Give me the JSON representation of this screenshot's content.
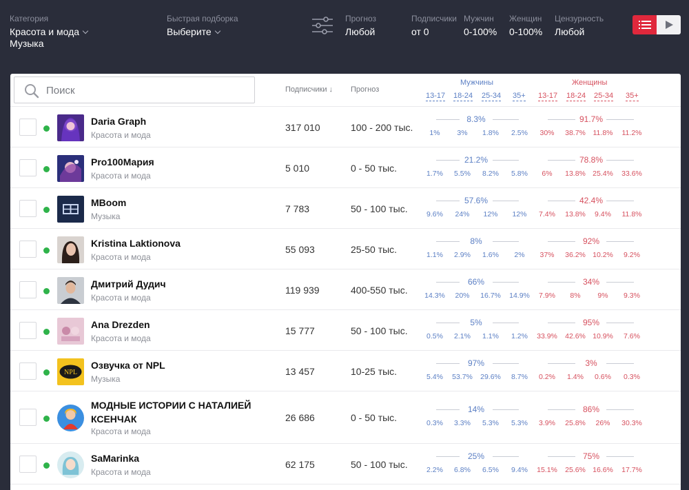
{
  "filters": {
    "category": {
      "label": "Категория",
      "value1": "Красота и мода",
      "value2": "Музыка"
    },
    "quick": {
      "label": "Быстрая подборка",
      "value": "Выберите"
    },
    "forecast": {
      "label": "Прогноз",
      "value": "Любой"
    },
    "subscribers": {
      "label": "Подписчики",
      "value": "от 0"
    },
    "men": {
      "label": "Мужчин",
      "value": "0-100%"
    },
    "women": {
      "label": "Женщин",
      "value": "0-100%"
    },
    "censorship": {
      "label": "Цензурность",
      "value": "Любой"
    }
  },
  "colors": {
    "background": "#2a2d3a",
    "accent": "#e0283c",
    "men": "#5b7fc4",
    "women": "#d6505e",
    "online": "#2fb34a"
  },
  "table": {
    "search_placeholder": "Поиск",
    "col_subscribers": "Подписчики",
    "sort_arrow": "↓",
    "col_forecast": "Прогноз",
    "men_title": "Мужчины",
    "women_title": "Женщины",
    "ages": [
      "13-17",
      "18-24",
      "25-34",
      "35+"
    ],
    "rows": [
      {
        "name": "Daria Graph",
        "category": "Красота и мода",
        "subscribers": "317 010",
        "forecast": "100 - 200 тыс.",
        "men_total": "8.3%",
        "men": [
          "1%",
          "3%",
          "1.8%",
          "2.5%"
        ],
        "women_total": "91.7%",
        "women": [
          "30%",
          "38.7%",
          "11.8%",
          "11.2%"
        ],
        "avatar": "avatar-1"
      },
      {
        "name": "Pro100Мария",
        "category": "Красота и мода",
        "subscribers": "5 010",
        "forecast": "0 - 50 тыс.",
        "men_total": "21.2%",
        "men": [
          "1.7%",
          "5.5%",
          "8.2%",
          "5.8%"
        ],
        "women_total": "78.8%",
        "women": [
          "6%",
          "13.8%",
          "25.4%",
          "33.6%"
        ],
        "avatar": "avatar-2"
      },
      {
        "name": "MBoom",
        "category": "Музыка",
        "subscribers": "7 783",
        "forecast": "50 - 100 тыс.",
        "men_total": "57.6%",
        "men": [
          "9.6%",
          "24%",
          "12%",
          "12%"
        ],
        "women_total": "42.4%",
        "women": [
          "7.4%",
          "13.8%",
          "9.4%",
          "11.8%"
        ],
        "avatar": "avatar-3"
      },
      {
        "name": "Kristina Laktionova",
        "category": "Красота и мода",
        "subscribers": "55 093",
        "forecast": "25-50 тыс.",
        "men_total": "8%",
        "men": [
          "1.1%",
          "2.9%",
          "1.6%",
          "2%"
        ],
        "women_total": "92%",
        "women": [
          "37%",
          "36.2%",
          "10.2%",
          "9.2%"
        ],
        "avatar": "avatar-4"
      },
      {
        "name": "Дмитрий Дудич",
        "category": "Красота и мода",
        "subscribers": "119 939",
        "forecast": "400-550 тыс.",
        "men_total": "66%",
        "men": [
          "14.3%",
          "20%",
          "16.7%",
          "14.9%"
        ],
        "women_total": "34%",
        "women": [
          "7.9%",
          "8%",
          "9%",
          "9.3%"
        ],
        "avatar": "avatar-5"
      },
      {
        "name": "Ana Drezden",
        "category": "Красота и мода",
        "subscribers": "15 777",
        "forecast": "50 - 100 тыс.",
        "men_total": "5%",
        "men": [
          "0.5%",
          "2.1%",
          "1.1%",
          "1.2%"
        ],
        "women_total": "95%",
        "women": [
          "33.9%",
          "42.6%",
          "10.9%",
          "7.6%"
        ],
        "avatar": "avatar-6"
      },
      {
        "name": "Озвучка от NPL",
        "category": "Музыка",
        "subscribers": "13 457",
        "forecast": "10-25 тыс.",
        "men_total": "97%",
        "men": [
          "5.4%",
          "53.7%",
          "29.6%",
          "8.7%"
        ],
        "women_total": "3%",
        "women": [
          "0.2%",
          "1.4%",
          "0.6%",
          "0.3%"
        ],
        "avatar": "avatar-7"
      },
      {
        "name": "МОДНЫЕ ИСТОРИИ С НАТАЛИЕЙ КСЕНЧАК",
        "category": "Красота и мода",
        "subscribers": "26 686",
        "forecast": "0 - 50 тыс.",
        "men_total": "14%",
        "men": [
          "0.3%",
          "3.3%",
          "5.3%",
          "5.3%"
        ],
        "women_total": "86%",
        "women": [
          "3.9%",
          "25.8%",
          "26%",
          "30.3%"
        ],
        "avatar": "avatar-8"
      },
      {
        "name": "SaMarinka",
        "category": "Красота и мода",
        "subscribers": "62 175",
        "forecast": "50 - 100 тыс.",
        "men_total": "25%",
        "men": [
          "2.2%",
          "6.8%",
          "6.5%",
          "9.4%"
        ],
        "women_total": "75%",
        "women": [
          "15.1%",
          "25.6%",
          "16.6%",
          "17.7%"
        ],
        "avatar": "avatar-9"
      }
    ]
  }
}
